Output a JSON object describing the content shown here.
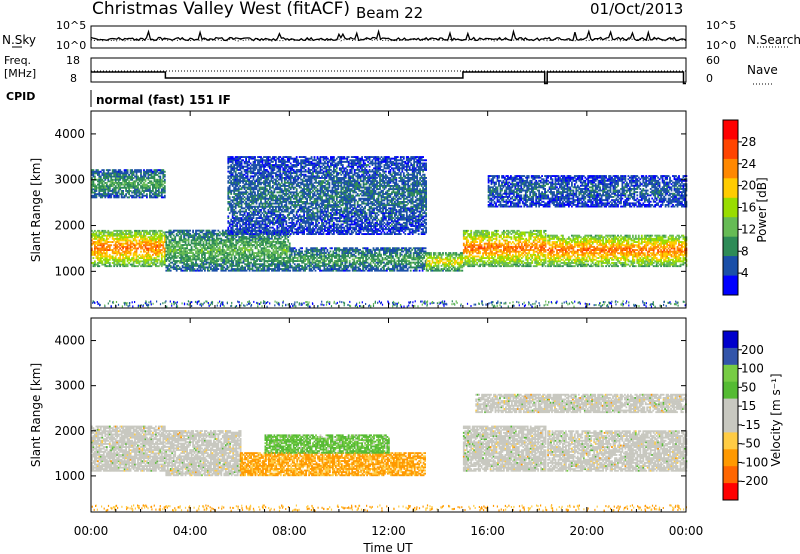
{
  "header": {
    "title": "Christmas Valley West (fitACF)",
    "beam": "Beam 22",
    "date": "01/Oct/2013"
  },
  "sky_panel": {
    "left_label": "N.Sky",
    "right_label": "N.Search",
    "left_ticks": [
      "10^5",
      "10^0"
    ],
    "right_ticks": [
      "10^5",
      "10^0"
    ]
  },
  "freq_panel": {
    "left_label_1": "Freq.",
    "left_label_2": "[MHz]",
    "left_ticks": [
      "18",
      "8"
    ],
    "right_ticks": [
      "60",
      "0"
    ],
    "right_label": "Nave"
  },
  "cpid": {
    "label": "CPID",
    "value": "normal (fast) 151 IF"
  },
  "colors": {
    "power": [
      "#0000ff",
      "#1a4fa8",
      "#2e8b57",
      "#66bb55",
      "#99dd00",
      "#ffcc00",
      "#ff8800",
      "#ff4400",
      "#ff0000"
    ],
    "velocity": [
      "#ff0000",
      "#ff6600",
      "#ff9900",
      "#ffcc44",
      "#c8c8c0",
      "#c8c8c0",
      "#55bb33",
      "#77cc44",
      "#3355aa",
      "#0000cc"
    ],
    "ground_scatter": "#c8c8c0"
  },
  "chart_data": [
    {
      "type": "heatmap",
      "name": "power",
      "ylabel": "Slant Range [km]",
      "yticks": [
        "1000",
        "2000",
        "3000",
        "4000"
      ],
      "ylim": [
        200,
        4500
      ],
      "colorbar_label": "Power [dB]",
      "colorbar_ticks": [
        "4",
        "8",
        "12",
        "16",
        "20",
        "24",
        "28"
      ],
      "colorbar_range": [
        0,
        32
      ],
      "features": [
        {
          "start": 0.0,
          "end": 3.0,
          "range_low": 1100,
          "range_high": 1900,
          "level": 26
        },
        {
          "start": 3.0,
          "end": 8.0,
          "range_low": 1000,
          "range_high": 1900,
          "level": 12
        },
        {
          "start": 8.0,
          "end": 13.5,
          "range_low": 1000,
          "range_high": 1500,
          "level": 10
        },
        {
          "start": 13.5,
          "end": 15.0,
          "range_low": 1000,
          "range_high": 1400,
          "level": 20
        },
        {
          "start": 15.0,
          "end": 18.3,
          "range_low": 1100,
          "range_high": 1900,
          "level": 26
        },
        {
          "start": 18.4,
          "end": 24.0,
          "range_low": 1100,
          "range_high": 1800,
          "level": 26
        },
        {
          "start": 0.0,
          "end": 3.0,
          "range_low": 2600,
          "range_high": 3200,
          "level": 10
        },
        {
          "start": 5.5,
          "end": 13.5,
          "range_low": 1800,
          "range_high": 3500,
          "level": 6
        },
        {
          "start": 16.0,
          "end": 24.0,
          "range_low": 2400,
          "range_high": 3100,
          "level": 5
        }
      ]
    },
    {
      "type": "heatmap",
      "name": "velocity",
      "ylabel": "Slant Range [km]",
      "yticks": [
        "1000",
        "2000",
        "3000",
        "4000"
      ],
      "ylim": [
        200,
        4500
      ],
      "colorbar_label": "Velocity [m s⁻¹]",
      "colorbar_ticks": [
        "200",
        "100",
        "50",
        "15",
        "-15",
        "-50",
        "-100",
        "-200"
      ],
      "features": [
        {
          "start": 0.0,
          "end": 3.0,
          "range_low": 1100,
          "range_high": 2100,
          "velocity": 0
        },
        {
          "start": 3.0,
          "end": 6.0,
          "range_low": 1000,
          "range_high": 2000,
          "velocity": 0
        },
        {
          "start": 6.0,
          "end": 13.5,
          "range_low": 1000,
          "range_high": 1500,
          "velocity": -60
        },
        {
          "start": 7.0,
          "end": 12.0,
          "range_low": 1500,
          "range_high": 1900,
          "velocity": 40
        },
        {
          "start": 15.0,
          "end": 18.3,
          "range_low": 1100,
          "range_high": 2100,
          "velocity": 0
        },
        {
          "start": 18.4,
          "end": 24.0,
          "range_low": 1100,
          "range_high": 2000,
          "velocity": 0
        },
        {
          "start": 15.5,
          "end": 24.0,
          "range_low": 2400,
          "range_high": 2800,
          "velocity": 0
        }
      ]
    }
  ],
  "x_axis": {
    "label": "Time UT",
    "ticks": [
      "00:00",
      "04:00",
      "08:00",
      "12:00",
      "16:00",
      "20:00",
      "00:00"
    ],
    "range_hours": [
      0,
      24
    ]
  }
}
